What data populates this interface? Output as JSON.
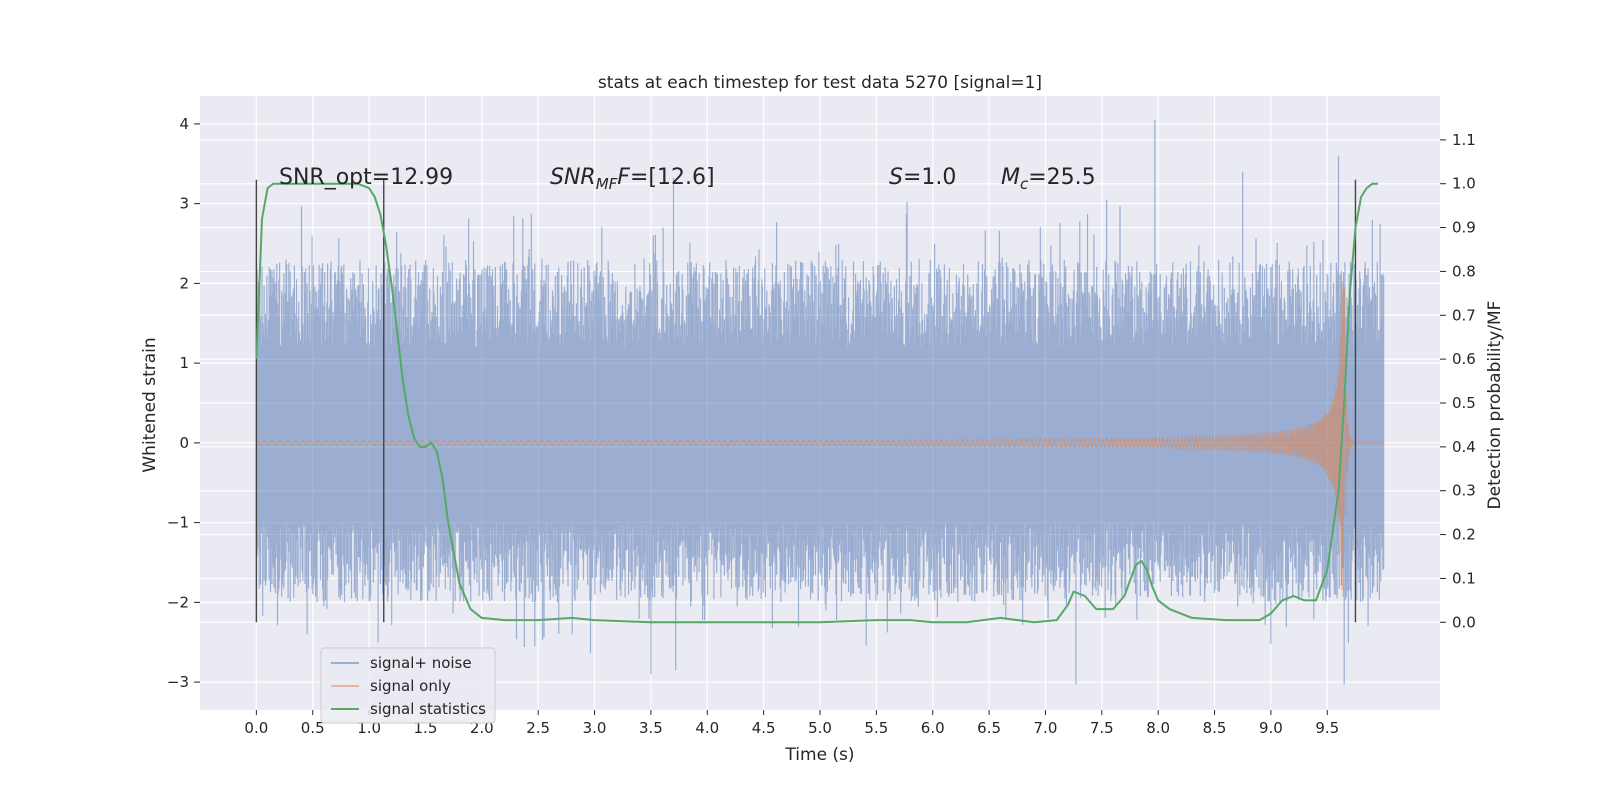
{
  "chart_data": {
    "type": "line",
    "title": "stats at each timestep for test data 5270 [signal=1]",
    "xlabel": "Time (s)",
    "ylabel_left": "Whitened strain",
    "ylabel_right": "Detection probability/MF",
    "xlim": [
      -0.5,
      10.5
    ],
    "ylim_left": [
      -3.35,
      4.35
    ],
    "ylim_right": [
      -0.2,
      1.2
    ],
    "xticks": [
      0.0,
      0.5,
      1.0,
      1.5,
      2.0,
      2.5,
      3.0,
      3.5,
      4.0,
      4.5,
      5.0,
      5.5,
      6.0,
      6.5,
      7.0,
      7.5,
      8.0,
      8.5,
      9.0,
      9.5
    ],
    "xtick_labels": [
      "0.0",
      "0.5",
      "1.0",
      "1.5",
      "2.0",
      "2.5",
      "3.0",
      "3.5",
      "4.0",
      "4.5",
      "5.0",
      "5.5",
      "6.0",
      "6.5",
      "7.0",
      "7.5",
      "8.0",
      "8.5",
      "9.0",
      "9.5"
    ],
    "yticks_left": [
      -3,
      -2,
      -1,
      0,
      1,
      2,
      3,
      4
    ],
    "ytick_labels_left": [
      "−3",
      "−2",
      "−1",
      "0",
      "1",
      "2",
      "3",
      "4"
    ],
    "yticks_right": [
      0.0,
      0.1,
      0.2,
      0.3,
      0.4,
      0.5,
      0.6,
      0.7,
      0.8,
      0.9,
      1.0,
      1.1
    ],
    "ytick_labels_right": [
      "0.0",
      "0.1",
      "0.2",
      "0.3",
      "0.4",
      "0.5",
      "0.6",
      "0.7",
      "0.8",
      "0.9",
      "1.0",
      "1.1"
    ],
    "grid": true,
    "legend_placement": "lower-left",
    "annotations": {
      "snr_opt": "SNR_opt=12.99",
      "snr_mf_base": "SNR",
      "snr_mf_sub": "MF",
      "snr_mf_value": "=[12.6]",
      "s_symbol": "S",
      "s_value": "=1.0",
      "mc_symbol": "M",
      "mc_sub": "c",
      "mc_value": "=25.5"
    },
    "vertical_lines": [
      {
        "x": 0.0,
        "y": [
          -2.25,
          3.3
        ]
      },
      {
        "x": 1.13,
        "y": [
          -2.25,
          3.3
        ]
      },
      {
        "x": 9.75,
        "y": [
          -2.25,
          3.3
        ]
      }
    ],
    "series": [
      {
        "name": "signal+ noise",
        "color": "#4c72b0",
        "axis": "left",
        "x_range": [
          0,
          10
        ],
        "typical_envelope": [
          -1.5,
          1.7
        ],
        "extremes": [
          -3.03,
          4.05
        ]
      },
      {
        "name": "signal only",
        "color": "#dd8452",
        "axis": "left",
        "x_range": [
          0,
          10
        ],
        "peak_time": 9.65,
        "peak_amplitude": 2.0
      },
      {
        "name": "signal statistics",
        "color": "#55a868",
        "axis": "right",
        "x": [
          0.0,
          0.05,
          0.1,
          0.15,
          0.2,
          0.3,
          0.5,
          0.7,
          0.9,
          1.0,
          1.05,
          1.1,
          1.15,
          1.2,
          1.25,
          1.3,
          1.35,
          1.4,
          1.45,
          1.5,
          1.55,
          1.6,
          1.65,
          1.7,
          1.8,
          1.9,
          2.0,
          2.2,
          2.5,
          2.8,
          3.0,
          3.5,
          4.0,
          4.5,
          5.0,
          5.5,
          5.8,
          6.0,
          6.3,
          6.6,
          6.9,
          7.1,
          7.2,
          7.25,
          7.35,
          7.45,
          7.5,
          7.6,
          7.7,
          7.8,
          7.85,
          7.9,
          7.95,
          8.0,
          8.1,
          8.3,
          8.6,
          8.9,
          9.0,
          9.1,
          9.2,
          9.3,
          9.4,
          9.5,
          9.6,
          9.65,
          9.7,
          9.75,
          9.8,
          9.85,
          9.9,
          9.95
        ],
        "y": [
          0.6,
          0.92,
          0.99,
          1.0,
          1.0,
          1.0,
          1.0,
          1.0,
          1.0,
          0.99,
          0.97,
          0.93,
          0.86,
          0.77,
          0.66,
          0.55,
          0.47,
          0.42,
          0.4,
          0.4,
          0.41,
          0.39,
          0.33,
          0.23,
          0.09,
          0.03,
          0.01,
          0.005,
          0.005,
          0.01,
          0.005,
          0.0,
          0.0,
          0.0,
          0.0,
          0.005,
          0.005,
          0.0,
          0.0,
          0.01,
          0.0,
          0.005,
          0.04,
          0.07,
          0.06,
          0.03,
          0.03,
          0.03,
          0.06,
          0.13,
          0.14,
          0.12,
          0.08,
          0.05,
          0.03,
          0.01,
          0.005,
          0.005,
          0.02,
          0.05,
          0.06,
          0.05,
          0.05,
          0.12,
          0.3,
          0.5,
          0.75,
          0.9,
          0.97,
          0.99,
          1.0,
          1.0
        ]
      }
    ]
  }
}
